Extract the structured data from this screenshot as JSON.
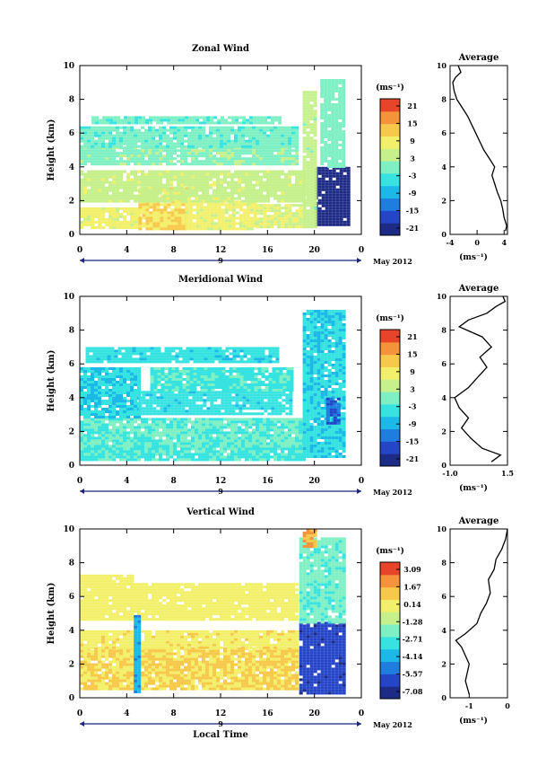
{
  "figure": {
    "xlabel": "Local Time",
    "date_label": "May 2012",
    "day_label": "9",
    "average_title": "Average",
    "unit_label": "(ms⁻¹)",
    "colorbar_unit": "(ms⁻¹)"
  },
  "chart_data": [
    {
      "type": "heatmap",
      "title": "Zonal Wind",
      "ylabel": "Height (km)",
      "x_ticks": [
        "0",
        "4",
        "8",
        "12",
        "16",
        "20",
        "0"
      ],
      "y_ticks": [
        "0",
        "2",
        "4",
        "6",
        "8",
        "10"
      ],
      "xlim": [
        0,
        24
      ],
      "ylim": [
        0,
        10
      ],
      "colorbar_ticks": [
        "21",
        "15",
        "9",
        "3",
        "-3",
        "-9",
        "-15",
        "-21"
      ],
      "colorbar_range": [
        -24,
        24
      ],
      "patches": [
        {
          "x": [
            0.0,
            5.0
          ],
          "y": [
            0.4,
            1.6
          ],
          "value": 8
        },
        {
          "x": [
            5.0,
            9.0
          ],
          "y": [
            0.4,
            2.8
          ],
          "value": 11
        },
        {
          "x": [
            9.0,
            15.0
          ],
          "y": [
            0.4,
            2.0
          ],
          "value": 8
        },
        {
          "x": [
            15.0,
            19.0
          ],
          "y": [
            0.4,
            1.8
          ],
          "value": 7
        },
        {
          "x": [
            0.0,
            19.0
          ],
          "y": [
            2.0,
            3.8
          ],
          "value": 5
        },
        {
          "x": [
            0.0,
            18.5
          ],
          "y": [
            4.1,
            5.2
          ],
          "value": 1
        },
        {
          "x": [
            0.0,
            18.5
          ],
          "y": [
            5.2,
            6.4
          ],
          "value": -1
        },
        {
          "x": [
            1.0,
            17.0
          ],
          "y": [
            6.6,
            7.0
          ],
          "value": -1
        },
        {
          "x": [
            20.0,
            22.8
          ],
          "y": [
            0.5,
            4.0
          ],
          "value": -22
        },
        {
          "x": [
            19.0,
            20.2
          ],
          "y": [
            0.5,
            8.5
          ],
          "value": 4
        },
        {
          "x": [
            20.5,
            22.5
          ],
          "y": [
            4.0,
            9.2
          ],
          "value": 0
        }
      ],
      "average": {
        "xlim": [
          -4,
          4.5
        ],
        "x_ticks": [
          "-4",
          "0",
          "4"
        ],
        "y_ticks": [
          "0",
          "2",
          "4",
          "6",
          "8",
          "10"
        ],
        "height_km": [
          0.2,
          0.5,
          1.0,
          1.5,
          2.0,
          2.5,
          3.0,
          3.5,
          4.0,
          4.5,
          5.0,
          5.5,
          6.0,
          6.5,
          7.0,
          7.5,
          8.0,
          8.5,
          9.0,
          9.3,
          9.6,
          10.0
        ],
        "value": [
          4.2,
          4.4,
          4.0,
          3.8,
          3.5,
          3.0,
          2.6,
          2.2,
          2.6,
          1.8,
          1.0,
          0.4,
          -0.2,
          -0.8,
          -1.4,
          -2.2,
          -3.0,
          -3.4,
          -3.6,
          -3.2,
          -2.4,
          -2.8
        ]
      }
    },
    {
      "type": "heatmap",
      "title": "Meridional Wind",
      "ylabel": "Height (km)",
      "x_ticks": [
        "0",
        "4",
        "8",
        "12",
        "16",
        "20",
        "0"
      ],
      "y_ticks": [
        "0",
        "2",
        "4",
        "6",
        "8",
        "10"
      ],
      "xlim": [
        0,
        24
      ],
      "ylim": [
        0,
        10
      ],
      "colorbar_ticks": [
        "21",
        "15",
        "9",
        "3",
        "-3",
        "-9",
        "-15",
        "-21"
      ],
      "colorbar_range": [
        -24,
        24
      ],
      "patches": [
        {
          "x": [
            0.0,
            19.0
          ],
          "y": [
            0.4,
            1.2
          ],
          "value": -3
        },
        {
          "x": [
            0.0,
            19.0
          ],
          "y": [
            1.2,
            2.8
          ],
          "value": -2
        },
        {
          "x": [
            0.0,
            5.0
          ],
          "y": [
            2.8,
            5.8
          ],
          "value": -6
        },
        {
          "x": [
            5.0,
            18.0
          ],
          "y": [
            3.0,
            4.4
          ],
          "value": -5
        },
        {
          "x": [
            6.0,
            18.0
          ],
          "y": [
            4.4,
            5.8
          ],
          "value": -3
        },
        {
          "x": [
            0.5,
            17.0
          ],
          "y": [
            6.2,
            7.0
          ],
          "value": -5
        },
        {
          "x": [
            19.0,
            22.5
          ],
          "y": [
            0.5,
            9.2
          ],
          "value": -6
        },
        {
          "x": [
            21.0,
            22.0
          ],
          "y": [
            2.5,
            4.0
          ],
          "value": -15
        }
      ],
      "average": {
        "xlim": [
          -1.0,
          1.5
        ],
        "x_ticks": [
          "-1.0",
          "1.5"
        ],
        "y_ticks": [
          "0",
          "2",
          "4",
          "6",
          "8",
          "10"
        ],
        "height_km": [
          0.2,
          0.6,
          1.0,
          1.6,
          2.2,
          2.8,
          3.4,
          4.0,
          4.6,
          5.2,
          5.8,
          6.4,
          7.0,
          7.6,
          8.2,
          8.6,
          9.0,
          9.4,
          9.7,
          10.0
        ],
        "value": [
          0.8,
          1.2,
          0.4,
          -0.1,
          -0.5,
          -0.2,
          -0.6,
          -0.8,
          -0.2,
          0.2,
          0.6,
          0.3,
          0.8,
          0.4,
          -0.6,
          -0.2,
          0.6,
          1.0,
          1.4,
          1.3
        ]
      }
    },
    {
      "type": "heatmap",
      "title": "Vertical Wind",
      "ylabel": "Height (km)",
      "x_ticks": [
        "0",
        "4",
        "8",
        "12",
        "16",
        "20",
        "0"
      ],
      "y_ticks": [
        "0",
        "2",
        "4",
        "6",
        "8",
        "10"
      ],
      "xlim": [
        0,
        24
      ],
      "ylim": [
        0,
        10
      ],
      "colorbar_ticks": [
        "3.09",
        "1.67",
        "0.14",
        "-1.28",
        "-2.71",
        "-4.14",
        "-5.57",
        "-7.08"
      ],
      "colorbar_range": [
        -8.0,
        4.0
      ],
      "patches": [
        {
          "x": [
            0.0,
            18.5
          ],
          "y": [
            0.5,
            3.0
          ],
          "value": 0.8
        },
        {
          "x": [
            0.0,
            18.5
          ],
          "y": [
            3.0,
            4.0
          ],
          "value": 0.4
        },
        {
          "x": [
            0.0,
            18.5
          ],
          "y": [
            4.6,
            6.8
          ],
          "value": 0.2
        },
        {
          "x": [
            0.0,
            4.5
          ],
          "y": [
            6.8,
            7.3
          ],
          "value": 0.2
        },
        {
          "x": [
            4.6,
            5.2
          ],
          "y": [
            0.3,
            4.9
          ],
          "value": -4.5
        },
        {
          "x": [
            18.7,
            22.5
          ],
          "y": [
            0.3,
            4.5
          ],
          "value": -6.5
        },
        {
          "x": [
            18.7,
            22.5
          ],
          "y": [
            4.5,
            9.5
          ],
          "value": -2.3
        },
        {
          "x": [
            19.0,
            20.0
          ],
          "y": [
            9.0,
            10.0
          ],
          "value": 1.8
        }
      ],
      "average": {
        "xlim": [
          -1.5,
          0
        ],
        "x_ticks": [
          "-1",
          "0"
        ],
        "y_ticks": [
          "0",
          "2",
          "4",
          "6",
          "8",
          "10"
        ],
        "height_km": [
          0.2,
          1.0,
          2.0,
          3.0,
          3.4,
          3.8,
          4.4,
          5.0,
          5.6,
          6.2,
          7.0,
          7.6,
          8.2,
          8.8,
          9.4,
          10.0
        ],
        "value": [
          -1.0,
          -1.1,
          -1.0,
          -1.2,
          -1.35,
          -1.1,
          -0.8,
          -0.7,
          -0.55,
          -0.45,
          -0.5,
          -0.35,
          -0.3,
          -0.15,
          -0.05,
          0.0
        ]
      }
    }
  ]
}
